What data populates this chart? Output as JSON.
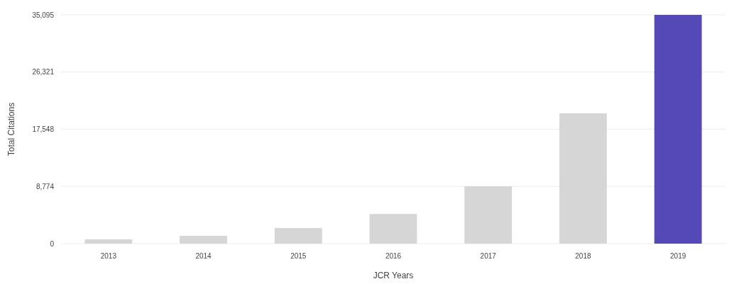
{
  "chart_data": {
    "type": "bar",
    "xlabel": "JCR Years",
    "ylabel": "Total Citations",
    "categories": [
      "2013",
      "2014",
      "2015",
      "2016",
      "2017",
      "2018",
      "2019"
    ],
    "values": [
      650,
      1200,
      2400,
      4550,
      8800,
      20000,
      35095
    ],
    "colors": [
      "#d6d6d6",
      "#d6d6d6",
      "#d6d6d6",
      "#d6d6d6",
      "#d6d6d6",
      "#d6d6d6",
      "#5549b8"
    ],
    "ylim": [
      0,
      35095
    ],
    "yticks": [
      0,
      {
        "value": 8774,
        "label": "8,774"
      },
      {
        "value": 17548,
        "label": "17,548"
      },
      {
        "value": 26321,
        "label": "26,321"
      },
      {
        "value": 35095,
        "label": "35,095"
      }
    ],
    "grid": "y"
  }
}
